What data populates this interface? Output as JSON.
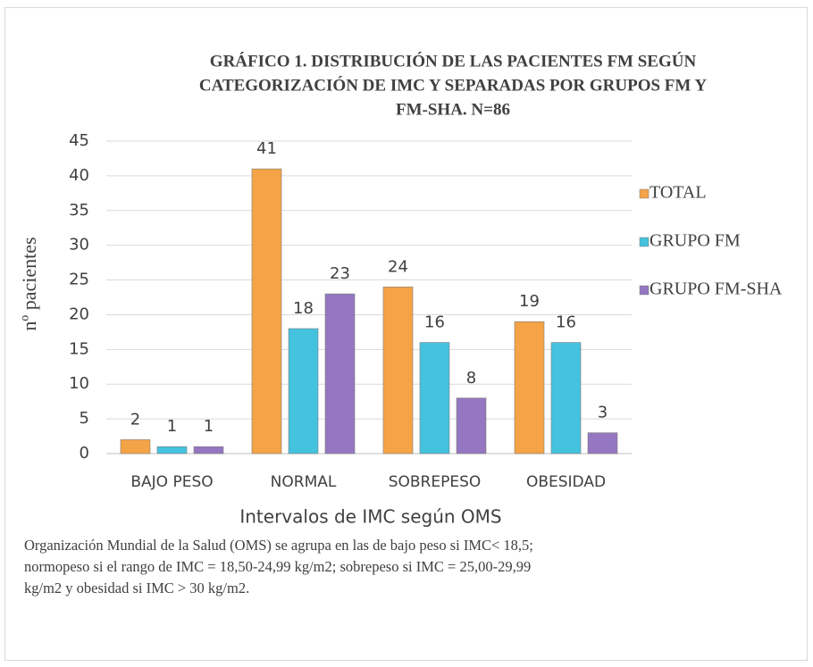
{
  "chart_data": {
    "type": "bar",
    "title": [
      "GRÁFICO 1. DISTRIBUCIÓN DE LAS PACIENTES FM SEGÚN",
      "CATEGORIZACIÓN DE IMC Y SEPARADAS POR GRUPOS FM Y",
      "FM-SHA. N=86"
    ],
    "x_label": "Intervalos de IMC según OMS",
    "y_label": "nº pacientes",
    "categories": [
      "BAJO PESO",
      "NORMAL",
      "SOBREPESO",
      "OBESIDAD"
    ],
    "series": [
      {
        "name": "TOTAL",
        "color": "#f4a346",
        "values": [
          2,
          41,
          24,
          19
        ]
      },
      {
        "name": "GRUPO FM",
        "color": "#44c2de",
        "values": [
          1,
          18,
          16,
          16
        ]
      },
      {
        "name": "GRUPO FM-SHA",
        "color": "#9477c0",
        "values": [
          1,
          23,
          8,
          3
        ]
      }
    ],
    "ylim": [
      0,
      45
    ],
    "yticks": [
      0,
      5,
      10,
      15,
      20,
      25,
      30,
      35,
      40,
      45
    ],
    "grid": true,
    "legend": "right",
    "caption": [
      "Organización Mundial de la Salud (OMS) se agrupa en las de bajo peso si IMC< 18,5;",
      "normopeso si el rango de IMC = 18,50-24,99 kg/m2; sobrepeso si IMC = 25,00-29,99",
      "kg/m2 y obesidad si IMC > 30 kg/m2."
    ]
  }
}
